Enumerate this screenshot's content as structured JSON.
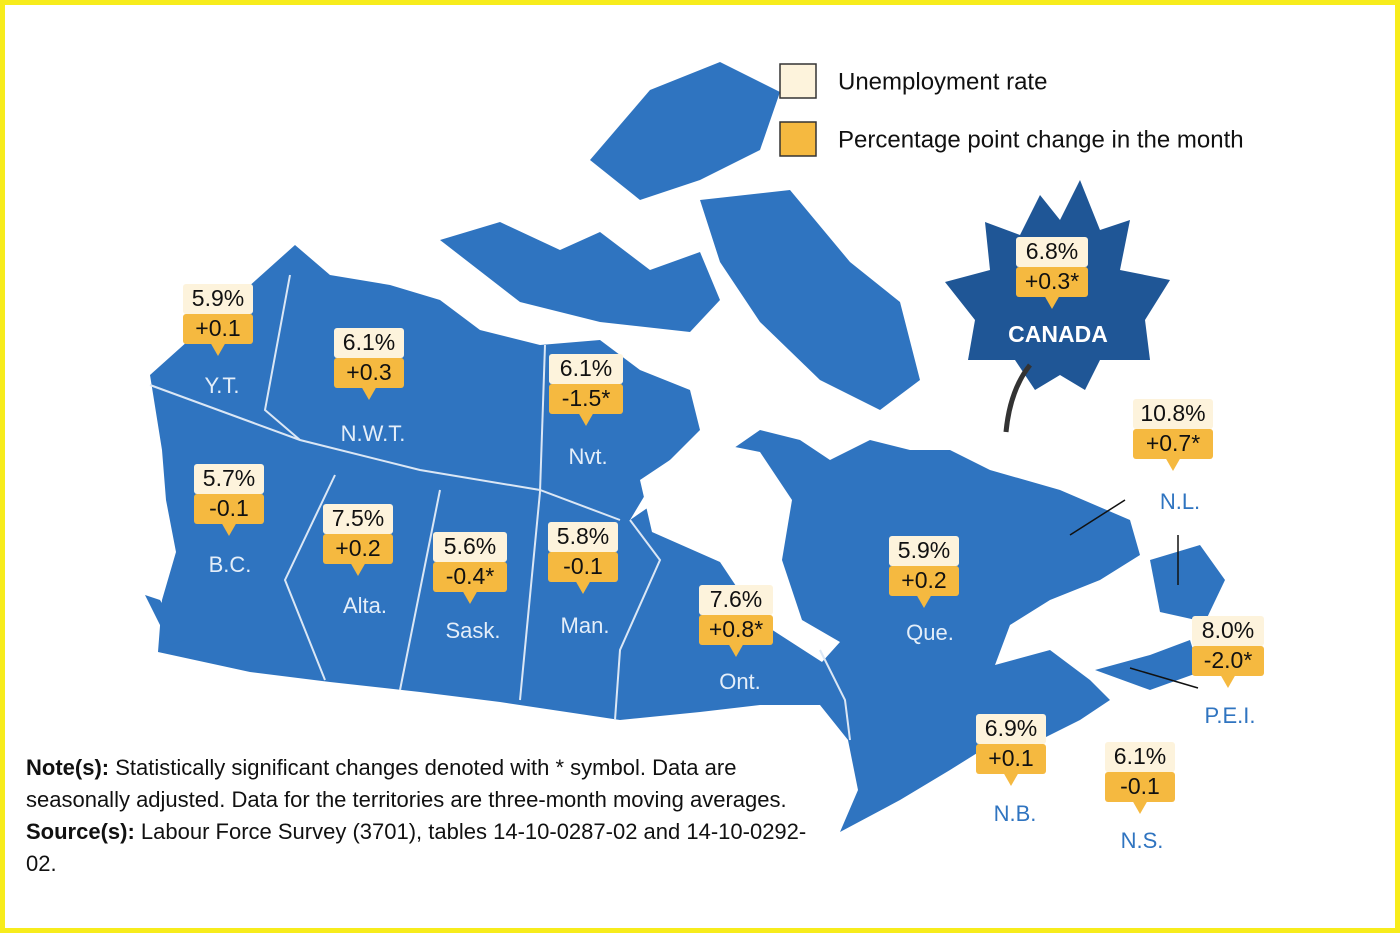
{
  "legend": [
    {
      "label": "Unemployment rate"
    },
    {
      "label": "Percentage point change in the month"
    }
  ],
  "national": {
    "name": "CANADA",
    "rate": "6.8%",
    "change": "+0.3*"
  },
  "regions": [
    {
      "name": "Y.T.",
      "rate": "5.9%",
      "change": "+0.1"
    },
    {
      "name": "N.W.T.",
      "rate": "6.1%",
      "change": "+0.3"
    },
    {
      "name": "Nvt.",
      "rate": "6.1%",
      "change": "-1.5*"
    },
    {
      "name": "B.C.",
      "rate": "5.7%",
      "change": "-0.1"
    },
    {
      "name": "Alta.",
      "rate": "7.5%",
      "change": "+0.2"
    },
    {
      "name": "Sask.",
      "rate": "5.6%",
      "change": "-0.4*"
    },
    {
      "name": "Man.",
      "rate": "5.8%",
      "change": "-0.1"
    },
    {
      "name": "Ont.",
      "rate": "7.6%",
      "change": "+0.8*"
    },
    {
      "name": "Que.",
      "rate": "5.9%",
      "change": "+0.2"
    },
    {
      "name": "N.L.",
      "rate": "10.8%",
      "change": "+0.7*"
    },
    {
      "name": "P.E.I.",
      "rate": "8.0%",
      "change": "-2.0*"
    },
    {
      "name": "N.B.",
      "rate": "6.9%",
      "change": "+0.1"
    },
    {
      "name": "N.S.",
      "rate": "6.1%",
      "change": "-0.1"
    }
  ],
  "note": {
    "label": "Note(s):",
    "text": "Statistically significant changes denoted with * symbol. Data are seasonally adjusted. Data for the territories are three-month moving averages."
  },
  "source": {
    "label": "Source(s):",
    "text": "Labour Force Survey (3701), tables 14-10-0287-02 and 14-10-0292-02."
  }
}
